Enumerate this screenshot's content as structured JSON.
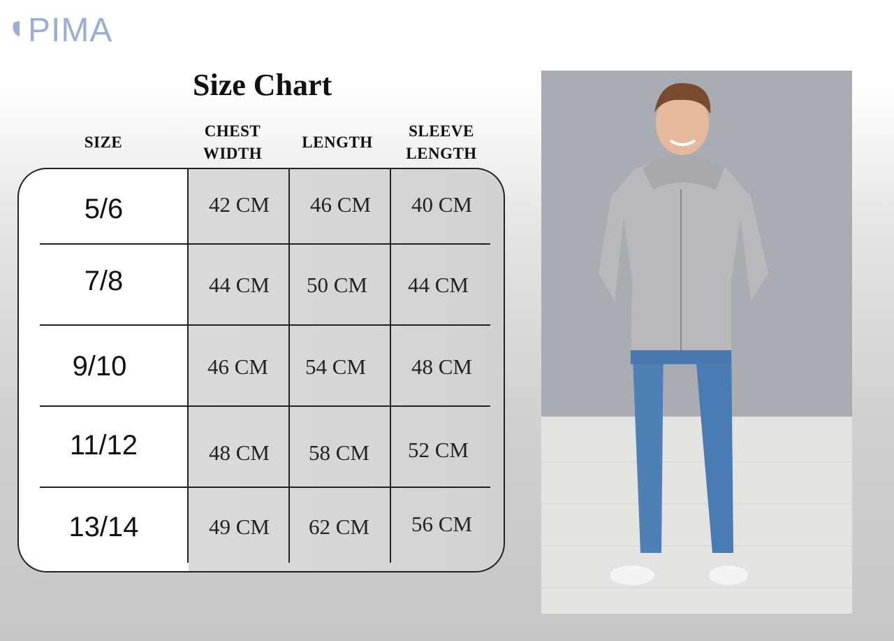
{
  "brand": {
    "logo_text": "PIMA",
    "logo_color": "#9aaed6"
  },
  "title": "Size Chart",
  "headers": [
    "SIZE",
    "CHEST WIDTH",
    "LENGTH",
    "SLEEVE LENGTH"
  ],
  "header_lines": {
    "size": [
      "SIZE"
    ],
    "chest": [
      "CHEST",
      "WIDTH"
    ],
    "length": [
      "LENGTH"
    ],
    "sleeve": [
      "SLEEVE",
      "LENGTH"
    ]
  },
  "rows": [
    {
      "size": "5/6",
      "chest": "42 CM",
      "length": "46 CM",
      "sleeve": "40 CM"
    },
    {
      "size": "7/8",
      "chest": "44 CM",
      "length": "50 CM",
      "sleeve": "44 CM"
    },
    {
      "size": "9/10",
      "chest": "46 CM",
      "length": "54 CM",
      "sleeve": "48 CM"
    },
    {
      "size": "11/12",
      "chest": "48 CM",
      "length": "58 CM",
      "sleeve": "52 CM"
    },
    {
      "size": "13/14",
      "chest": "49 CM",
      "length": "62 CM",
      "sleeve": "56 CM"
    }
  ],
  "photo": {
    "subject": "boy-in-grey-zip-hoodie-and-jeans"
  }
}
